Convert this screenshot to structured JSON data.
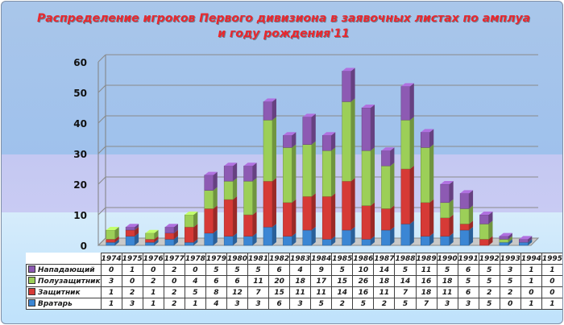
{
  "chart_data": {
    "type": "bar",
    "stacked": true,
    "title": "Распределение игроков Первого дивизиона в заявочных листах по амплуа и году рождения'11",
    "categories": [
      "1974",
      "1975",
      "1976",
      "1977",
      "1978",
      "1979",
      "1980",
      "1981",
      "1982",
      "1983",
      "1984",
      "1985",
      "1986",
      "1987",
      "1988",
      "1989",
      "1990",
      "1991",
      "1992",
      "1993",
      "1994",
      "1995"
    ],
    "series": [
      {
        "name": "Вратарь",
        "color": "#3b86d4",
        "values": [
          1,
          3,
          1,
          2,
          1,
          4,
          3,
          3,
          6,
          3,
          5,
          2,
          5,
          2,
          5,
          7,
          3,
          3,
          5,
          0,
          1,
          1
        ]
      },
      {
        "name": "Защитник",
        "color": "#d63a36",
        "values": [
          1,
          2,
          1,
          2,
          5,
          8,
          12,
          7,
          15,
          11,
          11,
          14,
          16,
          11,
          7,
          18,
          11,
          6,
          2,
          2,
          0,
          0
        ]
      },
      {
        "name": "Полузащитник",
        "color": "#9ccf58",
        "values": [
          3,
          0,
          2,
          0,
          4,
          6,
          6,
          11,
          20,
          18,
          17,
          15,
          26,
          18,
          14,
          16,
          18,
          5,
          5,
          5,
          1,
          0
        ]
      },
      {
        "name": "Нападающий",
        "color": "#8d5ab3",
        "values": [
          0,
          1,
          0,
          2,
          0,
          5,
          5,
          5,
          6,
          4,
          9,
          5,
          10,
          14,
          5,
          11,
          5,
          6,
          5,
          3,
          1,
          1
        ]
      }
    ],
    "ylim": [
      0,
      60
    ],
    "yticks": [
      0,
      10,
      20,
      30,
      40,
      50,
      60
    ],
    "grid": true,
    "data_table": true,
    "legend_order": [
      "Нападающий",
      "Полузащитник",
      "Защитник",
      "Вратарь"
    ]
  }
}
